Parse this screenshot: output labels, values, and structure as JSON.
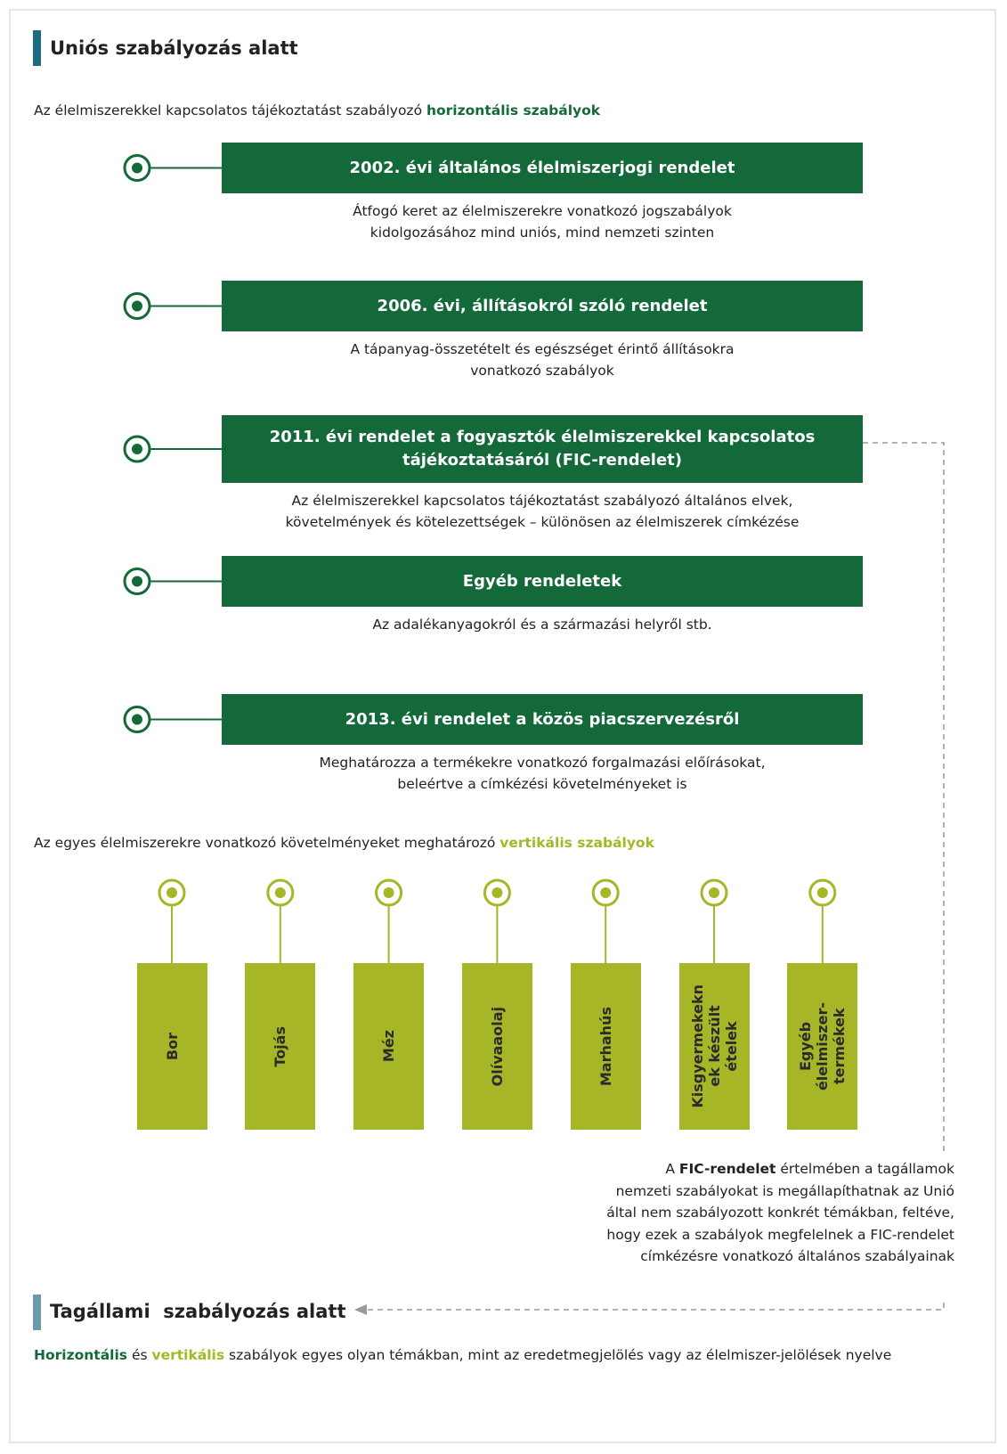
{
  "eu_section": {
    "title": "Uniós szabályozás alatt"
  },
  "horizontal": {
    "intro": "Az élelmiszerekkel kapcsolatos tájékoztatást szabályozó ",
    "highlight": "horizontális szabályok",
    "items": [
      {
        "title": [
          "2002. évi általános élelmiszerjogi rendelet"
        ],
        "description": [
          "Átfogó keret az élelmiszerekre vonatkozó jogszabályok",
          "kidolgozásához mind uniós, mind nemzeti szinten"
        ]
      },
      {
        "title": [
          "2006. évi, állításokról szóló rendelet"
        ],
        "description": [
          "A tápanyag-összetételt és egészséget érintő állításokra",
          "vonatkozó szabályok"
        ]
      },
      {
        "title": [
          "2011. évi rendelet a fogyasztók élelmiszerekkel kapcsolatos",
          "tájékoztatásáról (FIC-rendelet)"
        ],
        "description": [
          "Az élelmiszerekkel kapcsolatos tájékoztatást szabályozó általános elvek,",
          "követelmények és kötelezettségek – különösen az élelmiszerek címkézése"
        ]
      },
      {
        "title": [
          "Egyéb rendeletek"
        ],
        "description": [
          "Az adalékanyagokról és a származási helyről stb."
        ]
      },
      {
        "title": [
          "2013. évi rendelet a közös piacszervezésről"
        ],
        "description": [
          "Meghatározza a termékekre vonatkozó forgalmazási előírásokat,",
          "beleértve a címkézési követelményeket is"
        ]
      }
    ]
  },
  "vertical": {
    "intro": "Az egyes élelmiszerekre vonatkozó követelményeket meghatározó ",
    "highlight": "vertikális szabályok",
    "items": [
      [
        "Bor"
      ],
      [
        "Tojás"
      ],
      [
        "Méz"
      ],
      [
        "Olívaaolaj"
      ],
      [
        "Marhahús"
      ],
      [
        "Kisgyermekekn",
        "ek készült",
        "ételek"
      ],
      [
        "Egyéb",
        "élelmiszer-",
        "termékek"
      ]
    ]
  },
  "note": {
    "prefix": "A ",
    "bold": "FIC-rendelet",
    "text": " értelmében a tagállamok nemzeti szabályokat is megállapíthatnak az Unió által nem szabályozott konkrét témákban, feltéve, hogy ezek a szabályok megfelelnek a FIC-rendelet címkézésre vonatkozó általános szabályainak"
  },
  "national_section": {
    "title": "Tagállami  szabályozás alatt",
    "horizontal_word": "Horizontális",
    "connector": " és ",
    "vertical_word": "vertikális",
    "rest": " szabályok egyes olyan témákban, mint az eredetmegjelölés vagy az élelmiszer-jelölések nyelve"
  }
}
